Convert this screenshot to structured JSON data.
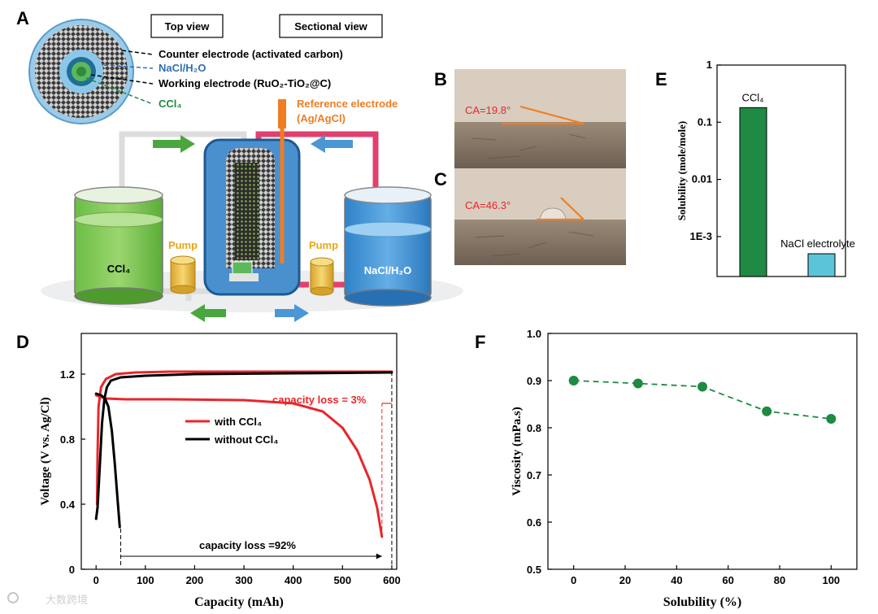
{
  "panels": {
    "A": "A",
    "B": "B",
    "C": "C",
    "D": "D",
    "E": "E",
    "F": "F"
  },
  "colors": {
    "green": "#1e8a43",
    "red": "#e8262c",
    "orange": "#ef7d22",
    "blue": "#2e6fb7",
    "lightblue": "#5bc4d9",
    "pink": "#e0406e",
    "black": "#000000"
  },
  "panelA": {
    "top_view": "Top view",
    "sectional_view": "Sectional view",
    "counter_electrode": "Counter electrode (activated carbon)",
    "nacl_h2o_label": "NaCl/H₂O",
    "working_electrode": "Working electrode (RuO₂-TiO₂@C)",
    "ccl4_label": "CCl₄",
    "reference_electrode_1": "Reference electrode",
    "reference_electrode_2": "(Ag/AgCl)",
    "pump_left": "Pump",
    "pump_right": "Pump",
    "tank_left": "CCl₄",
    "tank_right": "NaCl/H₂O"
  },
  "panelB": {
    "ca": "CA=19.8°"
  },
  "panelC": {
    "ca": "CA=46.3°"
  },
  "watermark": "大数跨境",
  "chart_data": [
    {
      "id": "D",
      "type": "line",
      "xlabel": "Capacity (mAh)",
      "ylabel": "Voltage (V vs. Ag/Cl)",
      "xlim": [
        -30,
        610
      ],
      "ylim": [
        0,
        1.45
      ],
      "xticks": [
        0,
        100,
        200,
        300,
        400,
        500,
        600
      ],
      "yticks": [
        0,
        0.4,
        0.8,
        1.2
      ],
      "ytick_labels": [
        "0",
        "0.4",
        "0.8",
        "1.2"
      ],
      "series": [
        {
          "name": "with CCl₄",
          "color": "#e8262c",
          "points": [
            [
              2,
              0.4
            ],
            [
              3,
              0.7
            ],
            [
              5,
              1.0
            ],
            [
              10,
              1.12
            ],
            [
              20,
              1.17
            ],
            [
              40,
              1.2
            ],
            [
              80,
              1.21
            ],
            [
              150,
              1.215
            ],
            [
              300,
              1.215
            ],
            [
              450,
              1.215
            ],
            [
              600,
              1.215
            ]
          ]
        },
        {
          "name": "with CCl₄ (discharge)",
          "color": "#e8262c",
          "points": [
            [
              0,
              1.07
            ],
            [
              20,
              1.05
            ],
            [
              60,
              1.045
            ],
            [
              150,
              1.045
            ],
            [
              300,
              1.04
            ],
            [
              400,
              1.02
            ],
            [
              460,
              0.97
            ],
            [
              500,
              0.87
            ],
            [
              530,
              0.73
            ],
            [
              555,
              0.55
            ],
            [
              570,
              0.38
            ],
            [
              580,
              0.2
            ]
          ]
        },
        {
          "name": "without CCl₄",
          "color": "#000000",
          "points": [
            [
              0,
              0.31
            ],
            [
              3,
              0.38
            ],
            [
              7,
              0.6
            ],
            [
              12,
              0.9
            ],
            [
              17,
              1.05
            ],
            [
              22,
              1.12
            ],
            [
              30,
              1.16
            ],
            [
              50,
              1.18
            ],
            [
              100,
              1.19
            ],
            [
              200,
              1.2
            ],
            [
              400,
              1.205
            ],
            [
              600,
              1.21
            ]
          ]
        },
        {
          "name": "without CCl₄ (discharge)",
          "color": "#000000",
          "points": [
            [
              0,
              1.08
            ],
            [
              10,
              1.07
            ],
            [
              18,
              1.05
            ],
            [
              25,
              1.0
            ],
            [
              32,
              0.85
            ],
            [
              38,
              0.65
            ],
            [
              43,
              0.45
            ],
            [
              48,
              0.26
            ]
          ]
        }
      ],
      "legend": [
        "with CCl₄",
        "without CCl₄"
      ],
      "annotations": {
        "loss3": "capacity loss = 3%",
        "loss92": "capacity loss =92%"
      }
    },
    {
      "id": "E",
      "type": "bar",
      "ylabel": "Solubility (mole/mole)",
      "yscale": "log",
      "ylim": [
        0.0002,
        1
      ],
      "yticks": [
        1,
        0.1,
        0.01,
        0.001
      ],
      "ytick_labels": [
        "1",
        "0.1",
        "0.01",
        "1E-3"
      ],
      "categories": [
        "CCl₄",
        "NaCl electrolyte"
      ],
      "values": [
        0.18,
        0.0005
      ],
      "colors": [
        "#1e8a43",
        "#5bc4d9"
      ]
    },
    {
      "id": "F",
      "type": "line",
      "xlabel": "Solubility (%)",
      "ylabel": "Viscosity (mPa.s)",
      "xlim": [
        -10,
        110
      ],
      "ylim": [
        0.5,
        1.0
      ],
      "xticks": [
        0,
        20,
        40,
        60,
        80,
        100
      ],
      "yticks": [
        0.5,
        0.6,
        0.7,
        0.8,
        0.9,
        1.0
      ],
      "ytick_labels": [
        "0.5",
        "0.6",
        "0.7",
        "0.8",
        "0.9",
        "1.0"
      ],
      "x": [
        0,
        25,
        50,
        75,
        100
      ],
      "y": [
        0.9,
        0.894,
        0.887,
        0.835,
        0.819
      ],
      "color": "#1e8a43"
    }
  ]
}
